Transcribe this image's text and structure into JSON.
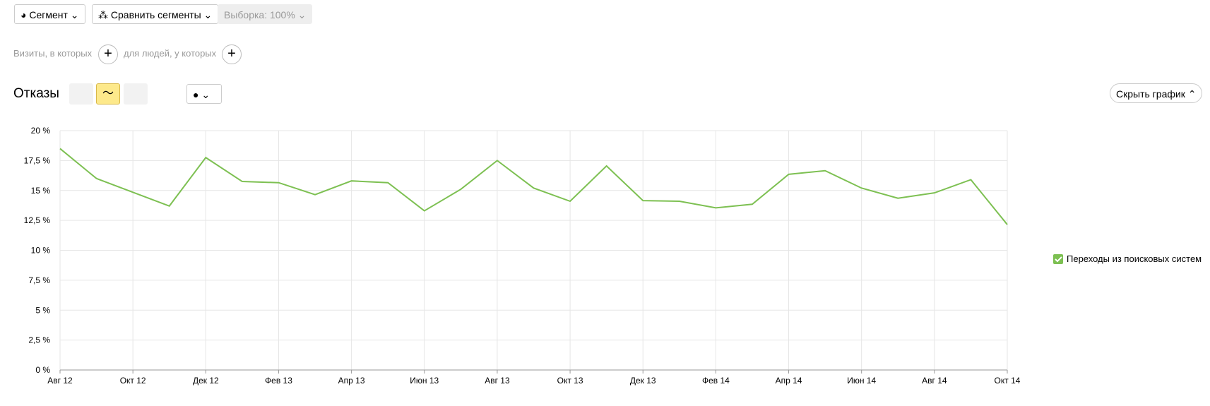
{
  "ui": {
    "segment": "Сегмент",
    "compare": "Сравнить сегменты",
    "sample": "Выборка: 100%",
    "visits": "Визиты, в которых",
    "people": "для людей, у которых",
    "title": "Отказы",
    "hide": "Скрыть график"
  },
  "chart_data": {
    "type": "line",
    "categories": [
      "Авг 12",
      null,
      "Окт 12",
      null,
      "Дек 12",
      null,
      "Фев 13",
      null,
      "Апр 13",
      null,
      "Июн 13",
      null,
      "Авг 13",
      null,
      "Окт 13",
      null,
      "Дек 13",
      null,
      "Фев 14",
      null,
      "Апр 14",
      null,
      "Июн 14",
      null,
      "Авг 14",
      null,
      "Окт 14"
    ],
    "series": [
      {
        "name": "Переходы из поисковых систем",
        "color": "#7dc052",
        "values": [
          18.5,
          16.0,
          14.85,
          13.7,
          17.75,
          15.75,
          15.65,
          14.65,
          15.8,
          15.65,
          13.3,
          15.1,
          17.5,
          15.2,
          14.1,
          17.05,
          14.15,
          14.1,
          13.55,
          13.85,
          16.35,
          16.65,
          15.2,
          14.35,
          14.8,
          15.9,
          12.15
        ]
      }
    ],
    "ylim": [
      0,
      20
    ],
    "yticks": [
      {
        "value": 0,
        "label": "0 %"
      },
      {
        "value": 2.5,
        "label": "2,5 %"
      },
      {
        "value": 5,
        "label": "5 %"
      },
      {
        "value": 7.5,
        "label": "7,5 %"
      },
      {
        "value": 10,
        "label": "10 %"
      },
      {
        "value": 12.5,
        "label": "12,5 %"
      },
      {
        "value": 15,
        "label": "15 %"
      },
      {
        "value": 17.5,
        "label": "17,5 %"
      },
      {
        "value": 20,
        "label": "20 %"
      }
    ],
    "grid": true
  }
}
